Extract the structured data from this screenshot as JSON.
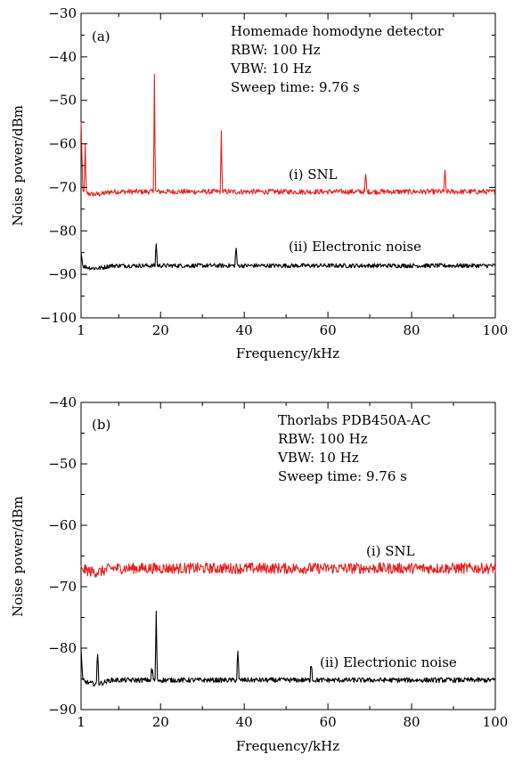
{
  "chart_data": [
    {
      "type": "line",
      "panel_label": "(a)",
      "xlabel": "Frequency/kHz",
      "ylabel": "Noise power/dBm",
      "xlim": [
        1,
        100
      ],
      "ylim": [
        -100,
        -30
      ],
      "x_ticks": [
        1,
        20,
        40,
        60,
        80,
        100
      ],
      "y_ticks": [
        -100,
        -90,
        -80,
        -70,
        -60,
        -50,
        -40,
        -30
      ],
      "grid": false,
      "info_lines": [
        "Homemade homodyne detector",
        "RBW: 100 Hz",
        "VBW: 10 Hz",
        "Sweep time: 9.76 s"
      ],
      "series": [
        {
          "label": "(i) SNL",
          "color": "#e8201e",
          "baseline_dbm": -71,
          "noise_amplitude": 0.6,
          "start_excursion_dbm": [
            -55,
            -60
          ],
          "peaks": [
            {
              "x": 2.0,
              "y": -60
            },
            {
              "x": 18.5,
              "y": -44
            },
            {
              "x": 34.5,
              "y": -57
            },
            {
              "x": 69,
              "y": -67
            },
            {
              "x": 88,
              "y": -66
            }
          ]
        },
        {
          "label": "(ii) Electronic noise",
          "color": "#000000",
          "baseline_dbm": -88,
          "noise_amplitude": 0.5,
          "start_excursion_dbm": [
            -85,
            -86
          ],
          "peaks": [
            {
              "x": 19,
              "y": -83
            },
            {
              "x": 38,
              "y": -84
            }
          ]
        }
      ]
    },
    {
      "type": "line",
      "panel_label": "(b)",
      "xlabel": "Frequency/kHz",
      "ylabel": "Noise power/dBm",
      "xlim": [
        1,
        100
      ],
      "ylim": [
        -90,
        -40
      ],
      "x_ticks": [
        1,
        20,
        40,
        60,
        80,
        100
      ],
      "y_ticks": [
        -90,
        -80,
        -70,
        -60,
        -50,
        -40
      ],
      "grid": false,
      "info_lines": [
        "Thorlabs PDB450A-AC",
        "RBW: 100 Hz",
        "VBW: 10 Hz",
        "Sweep time: 9.76 s"
      ],
      "series": [
        {
          "label": "(i) SNL",
          "color": "#e8201e",
          "baseline_dbm": -67,
          "noise_amplitude": 0.9,
          "start_excursion_dbm": [
            -66.5,
            -67
          ],
          "peaks": []
        },
        {
          "label": "(ii) Electrionic noise",
          "color": "#000000",
          "baseline_dbm": -85.2,
          "noise_amplitude": 0.4,
          "start_excursion_dbm": [
            -80,
            -82
          ],
          "peaks": [
            {
              "x": 5,
              "y": -81
            },
            {
              "x": 18,
              "y": -84
            },
            {
              "x": 19,
              "y": -74
            },
            {
              "x": 38.5,
              "y": -80.5
            },
            {
              "x": 56,
              "y": -83
            }
          ]
        }
      ]
    }
  ]
}
